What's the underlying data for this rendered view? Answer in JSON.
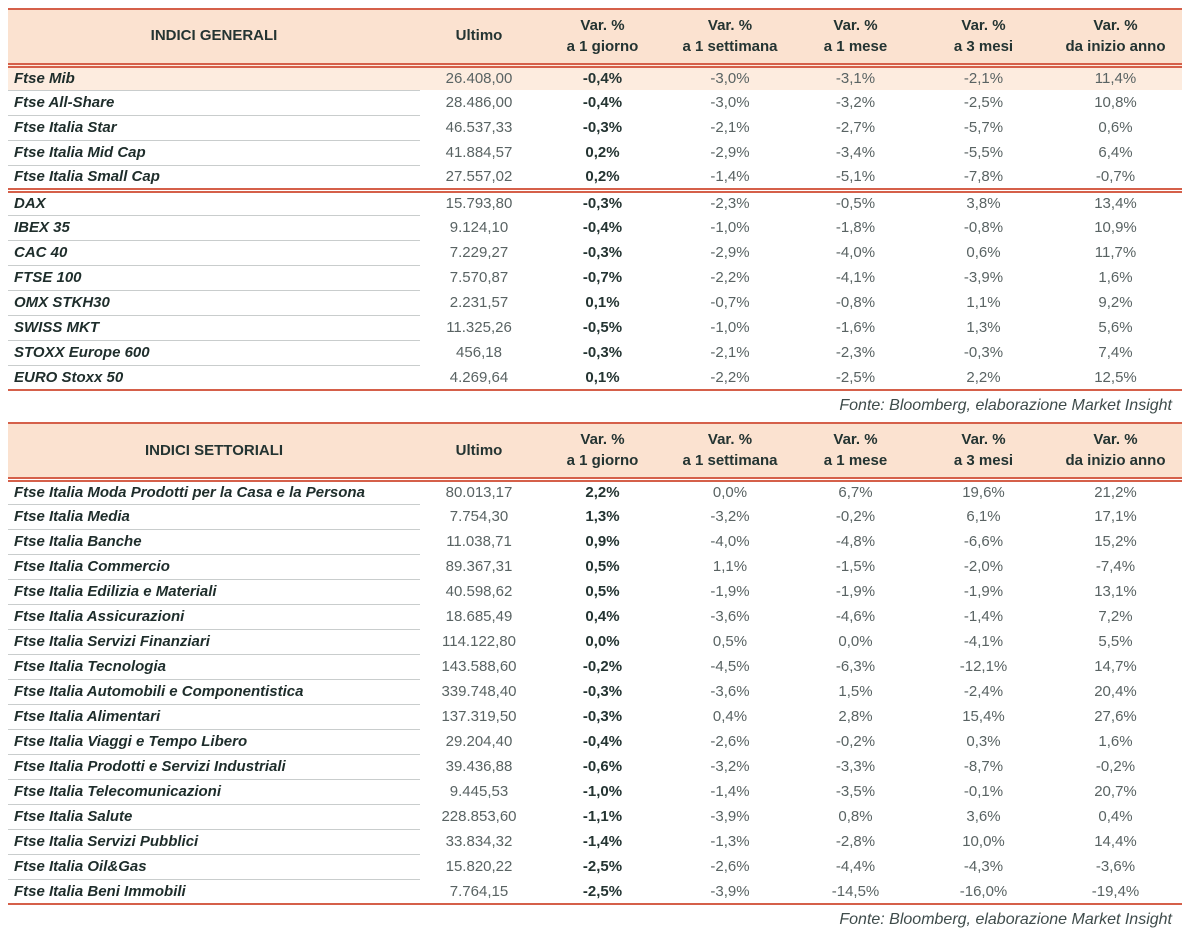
{
  "colors": {
    "rule_red": "#d5604a",
    "header_bg": "#fbe2d0",
    "highlight_bg": "#fdecdf",
    "name_text": "#1e2d2b",
    "number_text": "#596363"
  },
  "source_note": "Fonte: Bloomberg, elaborazione Market Insight",
  "columns": {
    "ultimo": "Ultimo",
    "var_label": "Var. %",
    "periods": [
      "a 1 giorno",
      "a 1 settimana",
      "a 1 mese",
      "a 3 mesi",
      "da inizio anno"
    ]
  },
  "row_fields": [
    "name",
    "ultimo",
    "d1",
    "w1",
    "m1",
    "m3",
    "ytd"
  ],
  "tables": [
    {
      "title": "INDICI GENERALI",
      "rows": [
        {
          "name": "Ftse Mib",
          "ultimo": "26.408,00",
          "d1": "-0,4%",
          "w1": "-3,0%",
          "m1": "-3,1%",
          "m3": "-2,1%",
          "ytd": "11,4%",
          "highlight": true
        },
        {
          "name": "Ftse All-Share",
          "ultimo": "28.486,00",
          "d1": "-0,4%",
          "w1": "-3,0%",
          "m1": "-3,2%",
          "m3": "-2,5%",
          "ytd": "10,8%"
        },
        {
          "name": "Ftse Italia Star",
          "ultimo": "46.537,33",
          "d1": "-0,3%",
          "w1": "-2,1%",
          "m1": "-2,7%",
          "m3": "-5,7%",
          "ytd": "0,6%"
        },
        {
          "name": "Ftse Italia Mid Cap",
          "ultimo": "41.884,57",
          "d1": "0,2%",
          "w1": "-2,9%",
          "m1": "-3,4%",
          "m3": "-5,5%",
          "ytd": "6,4%"
        },
        {
          "name": "Ftse Italia Small Cap",
          "ultimo": "27.557,02",
          "d1": "0,2%",
          "w1": "-1,4%",
          "m1": "-5,1%",
          "m3": "-7,8%",
          "ytd": "-0,7%"
        },
        {
          "name": "DAX",
          "ultimo": "15.793,80",
          "d1": "-0,3%",
          "w1": "-2,3%",
          "m1": "-0,5%",
          "m3": "3,8%",
          "ytd": "13,4%",
          "group_start": true
        },
        {
          "name": "IBEX 35",
          "ultimo": "9.124,10",
          "d1": "-0,4%",
          "w1": "-1,0%",
          "m1": "-1,8%",
          "m3": "-0,8%",
          "ytd": "10,9%"
        },
        {
          "name": "CAC 40",
          "ultimo": "7.229,27",
          "d1": "-0,3%",
          "w1": "-2,9%",
          "m1": "-4,0%",
          "m3": "0,6%",
          "ytd": "11,7%"
        },
        {
          "name": "FTSE 100",
          "ultimo": "7.570,87",
          "d1": "-0,7%",
          "w1": "-2,2%",
          "m1": "-4,1%",
          "m3": "-3,9%",
          "ytd": "1,6%"
        },
        {
          "name": "OMX STKH30",
          "ultimo": "2.231,57",
          "d1": "0,1%",
          "w1": "-0,7%",
          "m1": "-0,8%",
          "m3": "1,1%",
          "ytd": "9,2%"
        },
        {
          "name": "SWISS MKT",
          "ultimo": "11.325,26",
          "d1": "-0,5%",
          "w1": "-1,0%",
          "m1": "-1,6%",
          "m3": "1,3%",
          "ytd": "5,6%"
        },
        {
          "name": "STOXX Europe 600",
          "ultimo": "456,18",
          "d1": "-0,3%",
          "w1": "-2,1%",
          "m1": "-2,3%",
          "m3": "-0,3%",
          "ytd": "7,4%"
        },
        {
          "name": "EURO Stoxx 50",
          "ultimo": "4.269,64",
          "d1": "0,1%",
          "w1": "-2,2%",
          "m1": "-2,5%",
          "m3": "2,2%",
          "ytd": "12,5%"
        }
      ]
    },
    {
      "title": "INDICI SETTORIALI",
      "rows": [
        {
          "name": "Ftse Italia Moda Prodotti per la Casa e la Persona",
          "ultimo": "80.013,17",
          "d1": "2,2%",
          "w1": "0,0%",
          "m1": "6,7%",
          "m3": "19,6%",
          "ytd": "21,2%"
        },
        {
          "name": "Ftse Italia Media",
          "ultimo": "7.754,30",
          "d1": "1,3%",
          "w1": "-3,2%",
          "m1": "-0,2%",
          "m3": "6,1%",
          "ytd": "17,1%"
        },
        {
          "name": "Ftse Italia Banche",
          "ultimo": "11.038,71",
          "d1": "0,9%",
          "w1": "-4,0%",
          "m1": "-4,8%",
          "m3": "-6,6%",
          "ytd": "15,2%"
        },
        {
          "name": "Ftse Italia Commercio",
          "ultimo": "89.367,31",
          "d1": "0,5%",
          "w1": "1,1%",
          "m1": "-1,5%",
          "m3": "-2,0%",
          "ytd": "-7,4%"
        },
        {
          "name": "Ftse Italia Edilizia e Materiali",
          "ultimo": "40.598,62",
          "d1": "0,5%",
          "w1": "-1,9%",
          "m1": "-1,9%",
          "m3": "-1,9%",
          "ytd": "13,1%"
        },
        {
          "name": "Ftse Italia Assicurazioni",
          "ultimo": "18.685,49",
          "d1": "0,4%",
          "w1": "-3,6%",
          "m1": "-4,6%",
          "m3": "-1,4%",
          "ytd": "7,2%"
        },
        {
          "name": "Ftse Italia Servizi Finanziari",
          "ultimo": "114.122,80",
          "d1": "0,0%",
          "w1": "0,5%",
          "m1": "0,0%",
          "m3": "-4,1%",
          "ytd": "5,5%"
        },
        {
          "name": "Ftse Italia Tecnologia",
          "ultimo": "143.588,60",
          "d1": "-0,2%",
          "w1": "-4,5%",
          "m1": "-6,3%",
          "m3": "-12,1%",
          "ytd": "14,7%"
        },
        {
          "name": "Ftse Italia Automobili e Componentistica",
          "ultimo": "339.748,40",
          "d1": "-0,3%",
          "w1": "-3,6%",
          "m1": "1,5%",
          "m3": "-2,4%",
          "ytd": "20,4%"
        },
        {
          "name": "Ftse Italia Alimentari",
          "ultimo": "137.319,50",
          "d1": "-0,3%",
          "w1": "0,4%",
          "m1": "2,8%",
          "m3": "15,4%",
          "ytd": "27,6%"
        },
        {
          "name": "Ftse Italia Viaggi e Tempo Libero",
          "ultimo": "29.204,40",
          "d1": "-0,4%",
          "w1": "-2,6%",
          "m1": "-0,2%",
          "m3": "0,3%",
          "ytd": "1,6%"
        },
        {
          "name": "Ftse Italia Prodotti e Servizi Industriali",
          "ultimo": "39.436,88",
          "d1": "-0,6%",
          "w1": "-3,2%",
          "m1": "-3,3%",
          "m3": "-8,7%",
          "ytd": "-0,2%"
        },
        {
          "name": "Ftse Italia Telecomunicazioni",
          "ultimo": "9.445,53",
          "d1": "-1,0%",
          "w1": "-1,4%",
          "m1": "-3,5%",
          "m3": "-0,1%",
          "ytd": "20,7%"
        },
        {
          "name": "Ftse Italia Salute",
          "ultimo": "228.853,60",
          "d1": "-1,1%",
          "w1": "-3,9%",
          "m1": "0,8%",
          "m3": "3,6%",
          "ytd": "0,4%"
        },
        {
          "name": "Ftse Italia Servizi Pubblici",
          "ultimo": "33.834,32",
          "d1": "-1,4%",
          "w1": "-1,3%",
          "m1": "-2,8%",
          "m3": "10,0%",
          "ytd": "14,4%"
        },
        {
          "name": "Ftse Italia Oil&Gas",
          "ultimo": "15.820,22",
          "d1": "-2,5%",
          "w1": "-2,6%",
          "m1": "-4,4%",
          "m3": "-4,3%",
          "ytd": "-3,6%"
        },
        {
          "name": "Ftse Italia Beni Immobili",
          "ultimo": "7.764,15",
          "d1": "-2,5%",
          "w1": "-3,9%",
          "m1": "-14,5%",
          "m3": "-16,0%",
          "ytd": "-19,4%"
        }
      ]
    }
  ]
}
